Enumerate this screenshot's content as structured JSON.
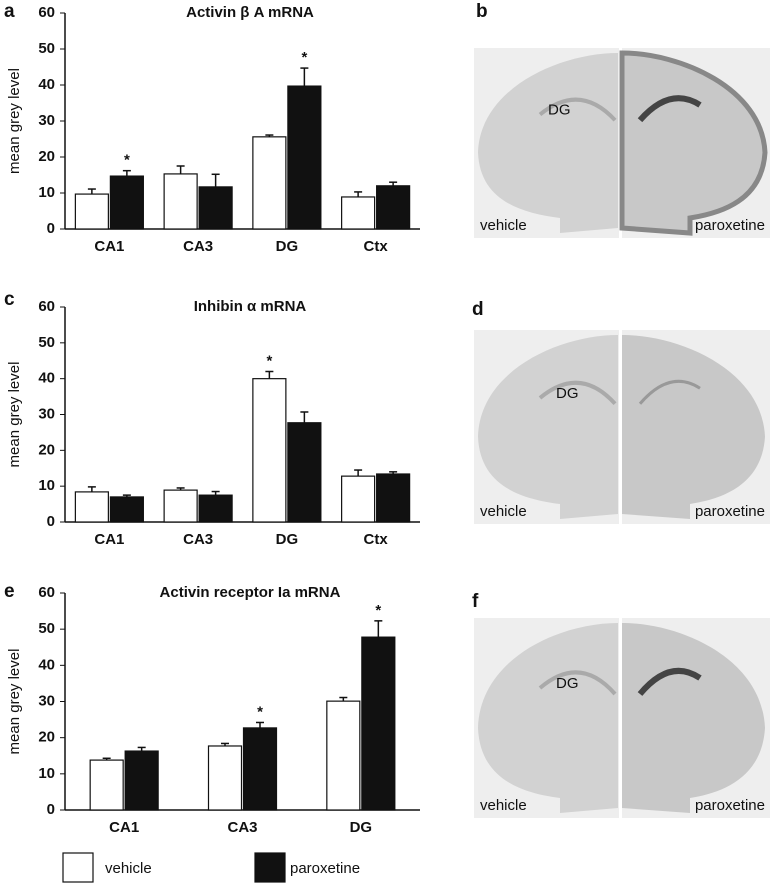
{
  "chart_data": [
    {
      "type": "bar",
      "title": "Activin β A mRNA",
      "ylabel": "mean grey level",
      "categories": [
        "CA1",
        "CA3",
        "DG",
        "Ctx"
      ],
      "series": [
        {
          "name": "vehicle",
          "color": "#ffffff",
          "values": [
            9.7,
            15.3,
            25.6,
            8.9
          ],
          "errors": [
            1.4,
            2.2,
            0.5,
            1.4
          ]
        },
        {
          "name": "paroxetine",
          "color": "#111111",
          "values": [
            14.7,
            11.7,
            39.7,
            12
          ],
          "errors": [
            1.5,
            3.5,
            5,
            1
          ]
        }
      ],
      "ylim": [
        0,
        60
      ],
      "yticks": [
        0,
        10,
        20,
        30,
        40,
        50,
        60
      ],
      "annotations": [
        {
          "text": "*",
          "category": "CA1",
          "series": "paroxetine"
        },
        {
          "text": "*",
          "category": "DG",
          "series": "paroxetine"
        }
      ]
    },
    {
      "type": "bar",
      "title": "Inhibin α mRNA",
      "ylabel": "mean grey level",
      "categories": [
        "CA1",
        "CA3",
        "DG",
        "Ctx"
      ],
      "series": [
        {
          "name": "vehicle",
          "color": "#ffffff",
          "values": [
            8.4,
            8.9,
            40,
            12.8
          ],
          "errors": [
            1.4,
            0.6,
            2,
            1.7
          ]
        },
        {
          "name": "paroxetine",
          "color": "#111111",
          "values": [
            7,
            7.5,
            27.7,
            13.4
          ],
          "errors": [
            0.5,
            1,
            3,
            0.6
          ]
        }
      ],
      "ylim": [
        0,
        60
      ],
      "yticks": [
        0,
        10,
        20,
        30,
        40,
        50,
        60
      ],
      "annotations": [
        {
          "text": "*",
          "category": "DG",
          "series": "vehicle"
        }
      ]
    },
    {
      "type": "bar",
      "title": "Activin receptor Ia mRNA",
      "ylabel": "mean grey level",
      "categories": [
        "CA1",
        "CA3",
        "DG"
      ],
      "series": [
        {
          "name": "vehicle",
          "color": "#ffffff",
          "values": [
            13.8,
            17.7,
            30.1
          ],
          "errors": [
            0.5,
            0.7,
            1
          ]
        },
        {
          "name": "paroxetine",
          "color": "#111111",
          "values": [
            16.3,
            22.7,
            47.8
          ],
          "errors": [
            1,
            1.5,
            4.5
          ]
        }
      ],
      "ylim": [
        0,
        60
      ],
      "yticks": [
        0,
        10,
        20,
        30,
        40,
        50,
        60
      ],
      "annotations": [
        {
          "text": "*",
          "category": "CA3",
          "series": "paroxetine"
        },
        {
          "text": "*",
          "category": "DG",
          "series": "paroxetine"
        }
      ]
    }
  ],
  "panels": {
    "labels": [
      "a",
      "b",
      "c",
      "d",
      "e",
      "f"
    ],
    "images": [
      {
        "region": "DG",
        "left": "vehicle",
        "right": "paroxetine"
      },
      {
        "region": "DG",
        "left": "vehicle",
        "right": "paroxetine"
      },
      {
        "region": "DG",
        "left": "vehicle",
        "right": "paroxetine"
      }
    ]
  }
}
